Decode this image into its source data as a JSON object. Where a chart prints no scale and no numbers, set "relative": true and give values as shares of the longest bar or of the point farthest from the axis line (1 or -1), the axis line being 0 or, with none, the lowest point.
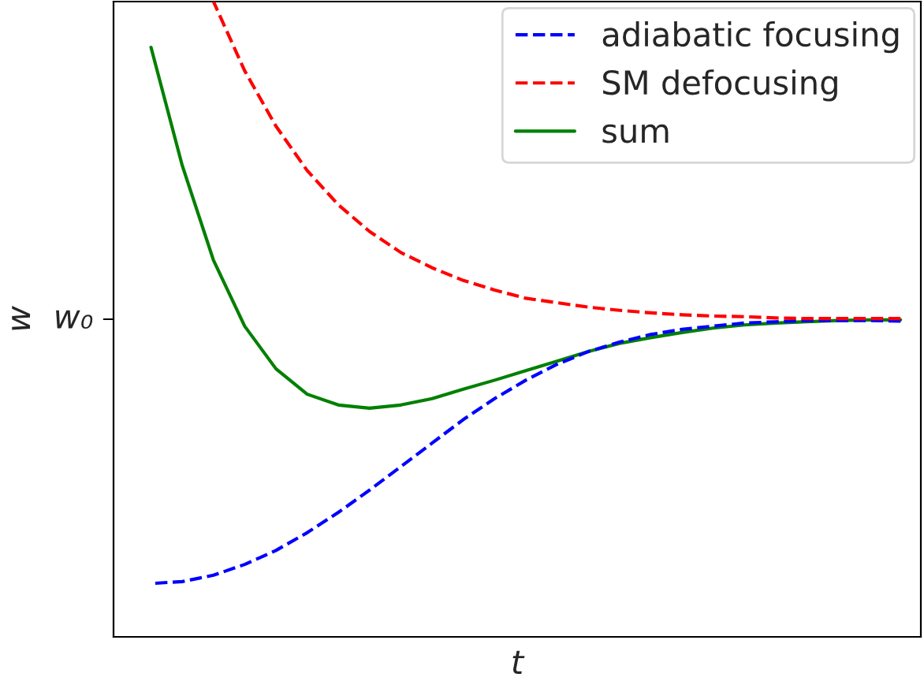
{
  "chart_data": {
    "type": "line",
    "relative": true,
    "xlabel": "t",
    "ylabel": "w",
    "categories": [
      null,
      null,
      null,
      null,
      null,
      null,
      null,
      null,
      null,
      null,
      null,
      null,
      null,
      null,
      null,
      null,
      null,
      null,
      null,
      null,
      null,
      null,
      null,
      null,
      null
    ],
    "annotations": [
      "w₀"
    ],
    "legend": "top right",
    "grid": false,
    "series": [
      {
        "name": "adiabatic focusing",
        "color": "#0000ff",
        "line_style": "dashed",
        "values": [
          0.084,
          0.087,
          0.097,
          0.114,
          0.136,
          0.164,
          0.196,
          0.231,
          0.268,
          0.305,
          0.342,
          0.375,
          0.404,
          0.429,
          0.449,
          0.464,
          0.476,
          0.484,
          0.489,
          0.494,
          0.496,
          0.498,
          0.498,
          0.498,
          0.497
        ]
      },
      {
        "name": "SM defocusing",
        "color": "#ff0000",
        "line_style": "dashed",
        "values": [
          null,
          null,
          1.0,
          0.891,
          0.804,
          0.734,
          0.68,
          0.638,
          0.605,
          0.581,
          0.561,
          0.546,
          0.533,
          0.526,
          0.519,
          0.514,
          0.51,
          0.507,
          0.505,
          0.504,
          0.502,
          0.501,
          0.501,
          0.501,
          0.501
        ]
      },
      {
        "name": "sum",
        "color": "#008000",
        "line_style": "solid",
        "values": [
          0.928,
          0.742,
          0.593,
          0.489,
          0.422,
          0.382,
          0.365,
          0.36,
          0.365,
          0.375,
          0.39,
          0.404,
          0.419,
          0.434,
          0.449,
          0.462,
          0.471,
          0.479,
          0.486,
          0.491,
          0.494,
          0.496,
          0.498,
          0.499,
          0.499
        ]
      }
    ]
  }
}
